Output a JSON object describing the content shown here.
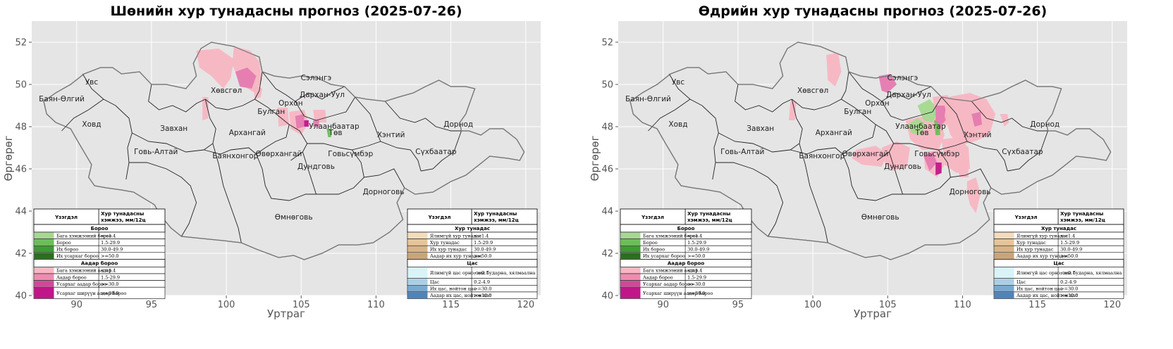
{
  "panels": [
    {
      "title": "Шөнийн хур тунадасны прогноз (2025-07-26)",
      "variant": "night"
    },
    {
      "title": "Өдрийн хур тунадасны прогноз (2025-07-26)",
      "variant": "day"
    }
  ],
  "axes": {
    "xlabel": "Уртраг",
    "ylabel": "Өргөрөг",
    "xlim": [
      87,
      121
    ],
    "ylim": [
      40,
      53
    ],
    "xticks": [
      "90",
      "95",
      "100",
      "105",
      "110",
      "115",
      "120"
    ],
    "yticks": [
      "40",
      "42",
      "44",
      "46",
      "48",
      "50",
      "52"
    ],
    "background": "#e5e5e5",
    "grid": true
  },
  "provinces": [
    {
      "name": "Увс",
      "lon": 91.0,
      "lat": 50.0
    },
    {
      "name": "Хөвсгөл",
      "lon": 100.0,
      "lat": 49.6
    },
    {
      "name": "Сэлэнгэ",
      "lon": 106.0,
      "lat": 50.2
    },
    {
      "name": "Баян-Өлгий",
      "lon": 89.0,
      "lat": 49.2
    },
    {
      "name": "Дархан-Уул",
      "lon": 106.4,
      "lat": 49.4
    },
    {
      "name": "Орхон",
      "lon": 104.3,
      "lat": 49.0
    },
    {
      "name": "Булган",
      "lon": 103.0,
      "lat": 48.6
    },
    {
      "name": "Ховд",
      "lon": 91.0,
      "lat": 48.0
    },
    {
      "name": "Завхан",
      "lon": 96.5,
      "lat": 47.8
    },
    {
      "name": "Архангай",
      "lon": 101.4,
      "lat": 47.6
    },
    {
      "name": "Улаанбаатар",
      "lon": 107.2,
      "lat": 47.9
    },
    {
      "name": "Төв",
      "lon": 107.3,
      "lat": 47.6
    },
    {
      "name": "Хэнтий",
      "lon": 111.0,
      "lat": 47.5
    },
    {
      "name": "Дорнод",
      "lon": 115.5,
      "lat": 48.0
    },
    {
      "name": "Говь-Алтай",
      "lon": 95.3,
      "lat": 46.7
    },
    {
      "name": "Баянхонгор",
      "lon": 100.6,
      "lat": 46.5
    },
    {
      "name": "Өвөрхангай",
      "lon": 103.5,
      "lat": 46.6
    },
    {
      "name": "Говьсүмбэр",
      "lon": 108.3,
      "lat": 46.6
    },
    {
      "name": "Сүхбаатар",
      "lon": 114.0,
      "lat": 46.7
    },
    {
      "name": "Дундговь",
      "lon": 106.0,
      "lat": 46.0
    },
    {
      "name": "Дорноговь",
      "lon": 110.5,
      "lat": 44.8
    },
    {
      "name": "Өмнөговь",
      "lon": 104.5,
      "lat": 43.6
    }
  ],
  "legend_left": {
    "col1": "Үзэгдэл",
    "col2": "Хур тунадасны хэмжээ, мм/12ц",
    "sections": [
      {
        "title": "Бороо",
        "rows": [
          {
            "label": "Бага хэмжээний бороо",
            "value": "<=1.4",
            "color": "#a4d98f"
          },
          {
            "label": "Бороо",
            "value": "1.5-29.9",
            "color": "#6cbd5a"
          },
          {
            "label": "Их бороо",
            "value": "30.0-49.9",
            "color": "#3f9a35"
          },
          {
            "label": "Их усархаг бороо",
            "value": ">=50.0",
            "color": "#2a6e1e"
          }
        ]
      },
      {
        "title": "Аадар бороо",
        "rows": [
          {
            "label": "Бага хэмжээний аадар",
            "value": "<=1.4",
            "color": "#f7b6c2"
          },
          {
            "label": "Аадар бороо",
            "value": "1.5-29.9",
            "color": "#ef8bb0"
          },
          {
            "label": "Усархаг аадар бороо",
            "value": ">=30.0",
            "color": "#d3479a"
          },
          {
            "label": "Усархаг ширүүн аадар бороо",
            "value": ">=30.0",
            "color": "#c0168a"
          }
        ]
      }
    ]
  },
  "legend_right": {
    "col1": "Үзэгдэл",
    "col2": "Хур тунадасны хэмжээ, мм/12ц",
    "sections": [
      {
        "title": "Хур тунадас",
        "rows": [
          {
            "label": "Ялимгүй хур тунадас",
            "value": "<=1.4",
            "color": "#f3dcb8"
          },
          {
            "label": "Хур тунадас",
            "value": "1.5-29.9",
            "color": "#e4c59b"
          },
          {
            "label": "Их хур тунадас",
            "value": "30.0-49.9",
            "color": "#d7b388"
          },
          {
            "label": "Аадар их хур тунадас",
            "value": ">=50.0",
            "color": "#c9a478"
          }
        ]
      },
      {
        "title": "Цас",
        "rows": [
          {
            "label": "Ялимгүй цас орно, цас бударна, хялмаална",
            "value": "<=0.1",
            "color": "#d9f3f7"
          },
          {
            "label": "Цас",
            "value": "0.2-4.9",
            "color": "#a9cfe6"
          },
          {
            "label": "Их цас, нойтон цас",
            "value": ">=30.0",
            "color": "#7aa9d0"
          },
          {
            "label": "Аадар их цас, нойтон цас",
            "value": ">=10.0",
            "color": "#4e84bd"
          }
        ]
      }
    ]
  }
}
